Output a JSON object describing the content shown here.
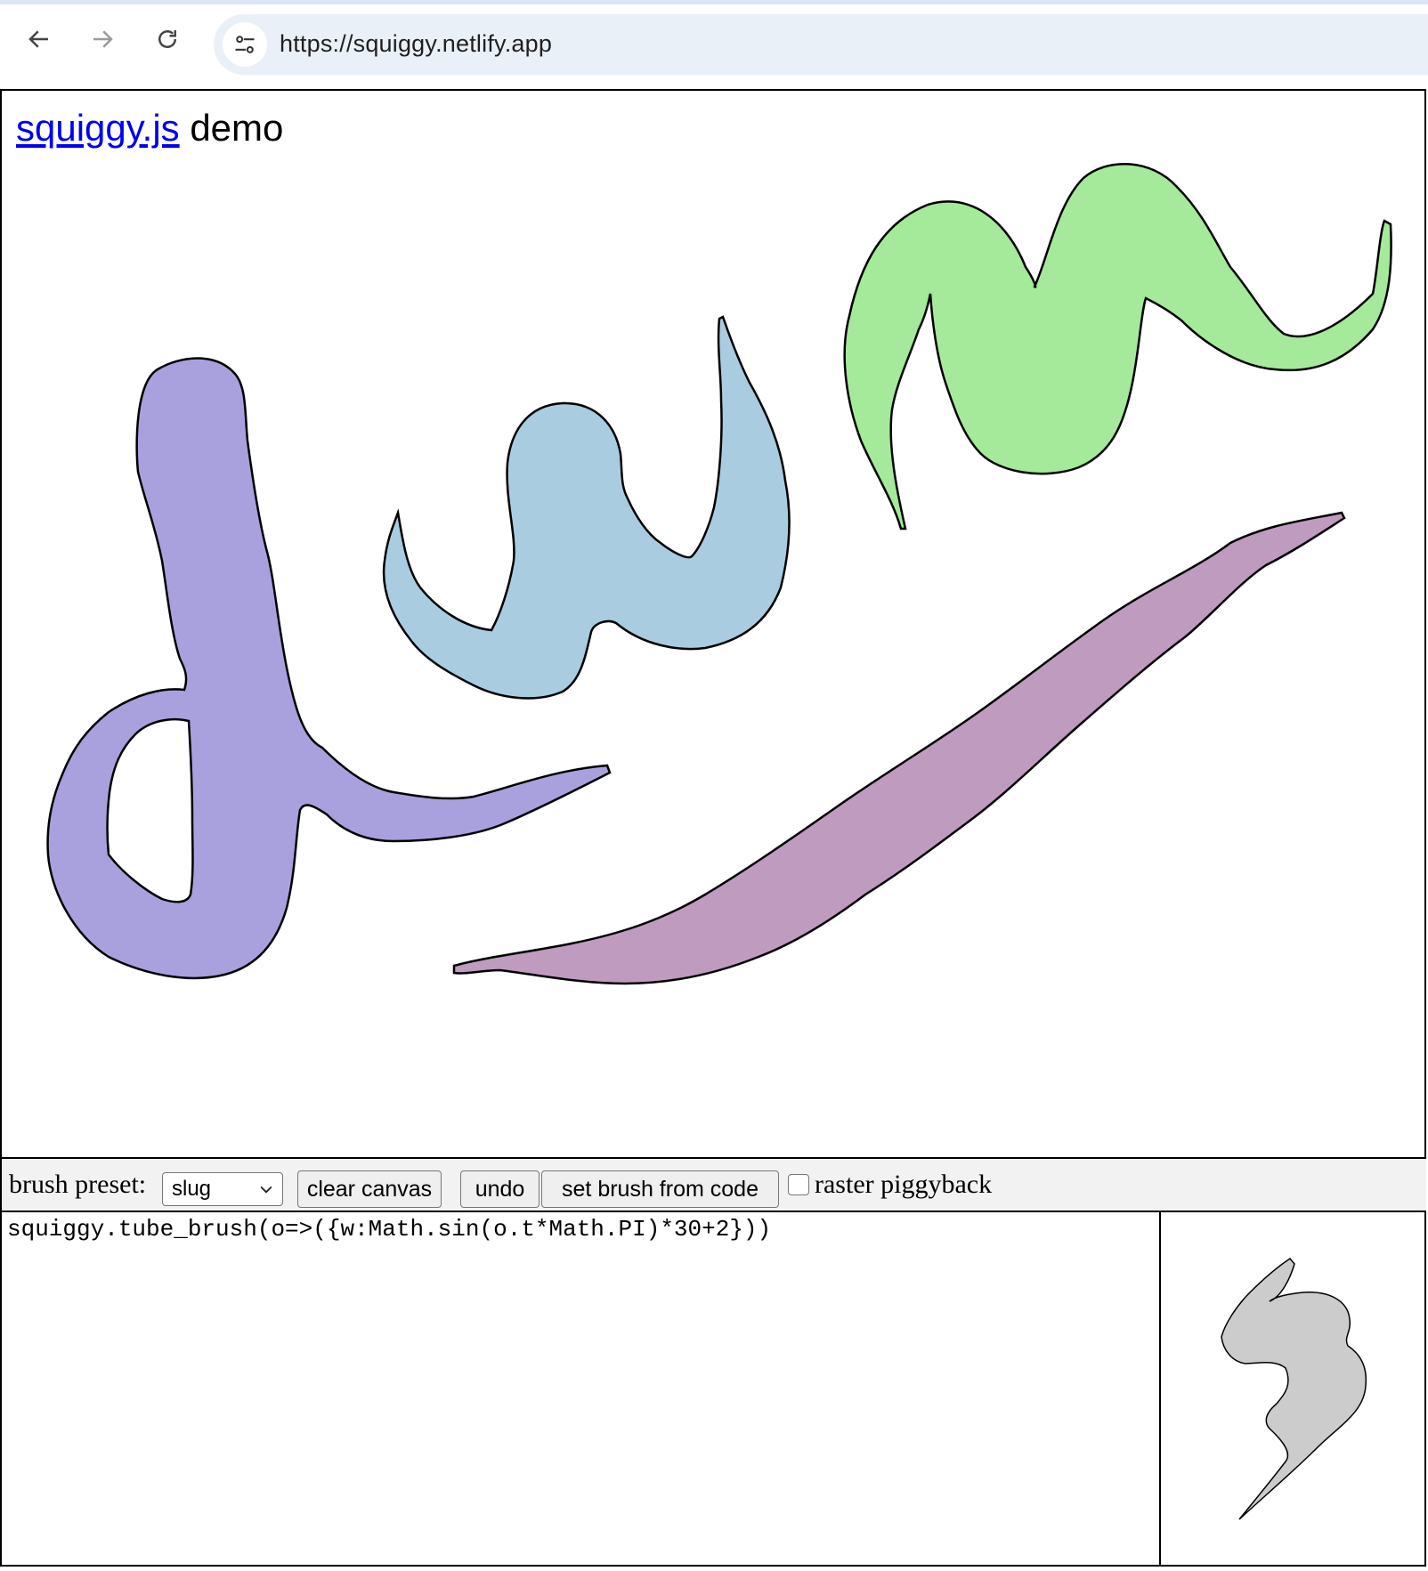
{
  "browser": {
    "url": "https://squiggy.netlify.app",
    "back_icon": "arrow-left-icon",
    "forward_icon": "arrow-right-icon",
    "reload_icon": "reload-icon",
    "site_info_icon": "tune-icon"
  },
  "header": {
    "link_text": "squiggy.js",
    "suffix": " demo"
  },
  "canvas": {
    "strokes": [
      {
        "name": "purple-d-stroke",
        "fill": "#a9a1de"
      },
      {
        "name": "blue-w-stroke",
        "fill": "#aacce0"
      },
      {
        "name": "green-m-stroke",
        "fill": "#a5e99a"
      },
      {
        "name": "mauve-leaf-stroke",
        "fill": "#bf9bbf"
      }
    ]
  },
  "toolbar": {
    "preset_label": "brush preset:",
    "preset_value": "slug",
    "clear_label": "clear canvas",
    "undo_label": "undo",
    "set_brush_label": "set brush from code",
    "raster_label": "raster piggyback",
    "raster_checked": false
  },
  "code": {
    "text": "squiggy.tube_brush(o=>({w:Math.sin(o.t*Math.PI)*30+2}))"
  },
  "preview": {
    "fill": "#cccccc"
  }
}
